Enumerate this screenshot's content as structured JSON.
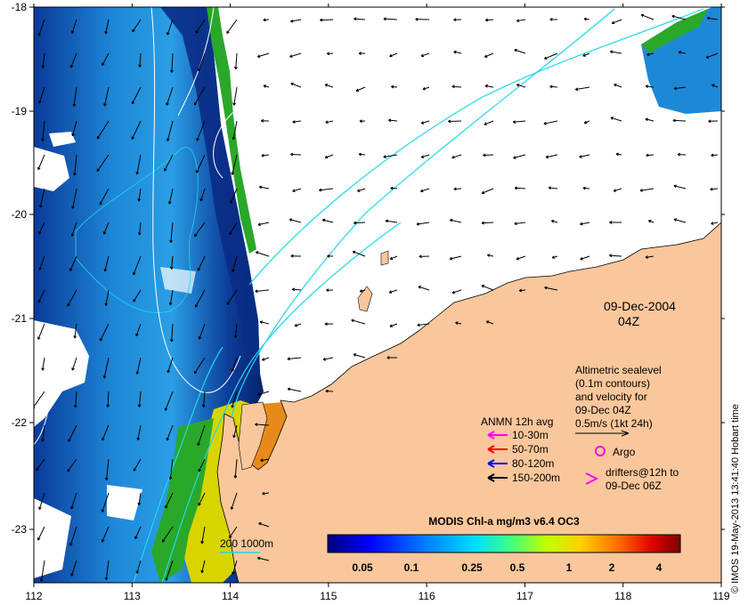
{
  "map": {
    "lon_ticks": [
      "112",
      "113",
      "114",
      "115",
      "116",
      "117",
      "118",
      "119"
    ],
    "lat_ticks": [
      "-18",
      "-19",
      "-20",
      "-21",
      "-22",
      "-23"
    ],
    "lon_range": [
      112,
      119
    ],
    "lat_range": [
      -23.5,
      -18
    ],
    "colors": {
      "land": "#f9c79b",
      "ocean_deep": "#08308a",
      "ocean_mid": "#1a78d0",
      "ocean_light": "#3cb0f0",
      "coastal_green": "#2aa82a",
      "coastal_yellow": "#d8d400",
      "coastal_orange": "#e88a1a",
      "contour": "#21d8e8",
      "sealevel": "#ffffff"
    }
  },
  "date": {
    "date": "09-Dec-2004",
    "time": "04Z"
  },
  "altimetric": {
    "line1": "Altimetric sealevel",
    "line2": "(0.1m contours)",
    "line3": "and velocity for",
    "line4": "09-Dec 04Z",
    "line5": "0.5m/s (1kt 24h)"
  },
  "anmn": {
    "title": "ANMN 12h avg",
    "items": [
      {
        "label": "10-30m",
        "color": "#ff00ff"
      },
      {
        "label": "50-70m",
        "color": "#ff0000"
      },
      {
        "label": "80-120m",
        "color": "#0000ff"
      },
      {
        "label": "150-200m",
        "color": "#000000"
      }
    ]
  },
  "argo": {
    "label": "Argo",
    "color": "#ff00ff"
  },
  "drifters": {
    "line1": "drifters@12h to",
    "line2": "09-Dec 06Z",
    "color": "#ff00ff"
  },
  "depth_contour": {
    "label": "200  1000m"
  },
  "colorbar": {
    "title": "MODIS Chl-a mg/m3 v6.4 OC3",
    "ticks": [
      "0.05",
      "0.1",
      "0.25",
      "0.5",
      "1",
      "2",
      "4"
    ],
    "stops": [
      "#00007f",
      "#0000ff",
      "#0080ff",
      "#00e0ff",
      "#40ff80",
      "#c0ff00",
      "#ffd000",
      "#ff7000",
      "#e00000",
      "#800000"
    ]
  },
  "credit": {
    "text": "© IMOS 19-May-2013 13:41:40 Hobart time"
  }
}
